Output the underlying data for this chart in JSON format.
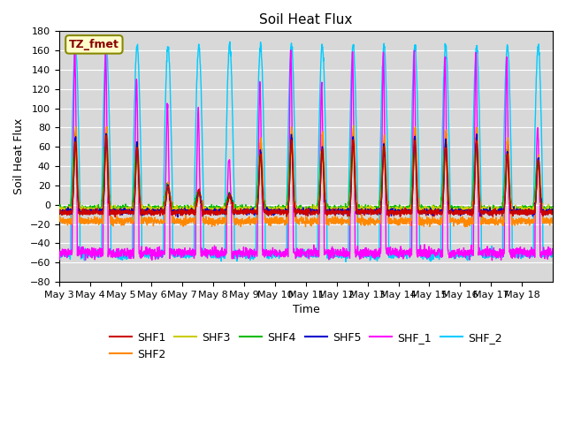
{
  "title": "Soil Heat Flux",
  "xlabel": "Time",
  "ylabel": "Soil Heat Flux",
  "ylim": [
    -80,
    180
  ],
  "x_ticks_labels": [
    "May 3",
    "May 4",
    "May 5",
    "May 6",
    "May 7",
    "May 8",
    "May 9",
    "May 10",
    "May 11",
    "May 12",
    "May 13",
    "May 14",
    "May 15",
    "May 16",
    "May 17",
    "May 18"
  ],
  "series_colors": {
    "SHF1": "#cc0000",
    "SHF2": "#ff8800",
    "SHF3": "#cccc00",
    "SHF4": "#00bb00",
    "SHF5": "#0000cc",
    "SHF_1": "#ff00ff",
    "SHF_2": "#00ccff"
  },
  "annotation_text": "TZ_fmet",
  "annotation_bg": "#ffffcc",
  "annotation_border": "#888800",
  "annotation_color": "#880000",
  "plot_bg": "#d8d8d8",
  "grid_color": "#ffffff",
  "title_fontsize": 11,
  "label_fontsize": 9,
  "tick_fontsize": 8
}
